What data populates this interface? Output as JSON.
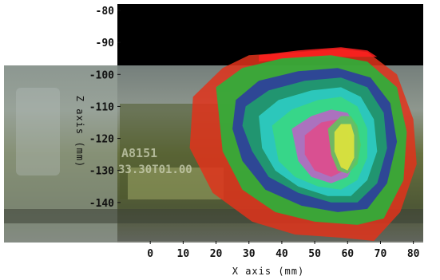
{
  "chart_data": {
    "type": "contour",
    "xlabel": "X axis (mm)",
    "ylabel": "Z axis (mm)",
    "xlim": [
      -10,
      83
    ],
    "ylim": [
      -152,
      -78
    ],
    "x_ticks": [
      0,
      10,
      20,
      30,
      40,
      50,
      60,
      70,
      80
    ],
    "y_ticks": [
      -80,
      -90,
      -100,
      -110,
      -120,
      -130,
      -140
    ],
    "grid": false,
    "background_photo_text": [
      "A8151",
      "33.30T01.00"
    ],
    "contours": [
      {
        "color": "#e0331b",
        "points": [
          [
            13,
            -107
          ],
          [
            22,
            -98
          ],
          [
            30,
            -94
          ],
          [
            45,
            -93
          ],
          [
            58,
            -92
          ],
          [
            66,
            -93
          ],
          [
            75,
            -100
          ],
          [
            80,
            -114
          ],
          [
            81,
            -128
          ],
          [
            76,
            -143
          ],
          [
            68,
            -152
          ],
          [
            58,
            -151
          ],
          [
            44,
            -150
          ],
          [
            31,
            -146
          ],
          [
            19,
            -137
          ],
          [
            12,
            -123
          ]
        ]
      },
      {
        "color": "#ff2020",
        "points": [
          [
            33,
            -94
          ],
          [
            45,
            -92.5
          ],
          [
            58,
            -91.5
          ],
          [
            66,
            -92.5
          ],
          [
            69,
            -94.5
          ],
          [
            58,
            -94.5
          ],
          [
            45,
            -95
          ],
          [
            33,
            -96
          ]
        ]
      },
      {
        "color": "#22b83c",
        "points": [
          [
            20,
            -104
          ],
          [
            28,
            -98
          ],
          [
            40,
            -95
          ],
          [
            55,
            -94
          ],
          [
            66,
            -96
          ],
          [
            75,
            -104
          ],
          [
            78,
            -118
          ],
          [
            77,
            -133
          ],
          [
            71,
            -145
          ],
          [
            63,
            -147
          ],
          [
            50,
            -146
          ],
          [
            38,
            -143
          ],
          [
            28,
            -136
          ],
          [
            22,
            -124
          ]
        ]
      },
      {
        "color": "#2b36a6",
        "points": [
          [
            26,
            -108
          ],
          [
            33,
            -102
          ],
          [
            45,
            -99
          ],
          [
            57,
            -98
          ],
          [
            67,
            -101
          ],
          [
            73,
            -109
          ],
          [
            75,
            -121
          ],
          [
            72,
            -134
          ],
          [
            66,
            -142
          ],
          [
            57,
            -143
          ],
          [
            46,
            -141
          ],
          [
            35,
            -136
          ],
          [
            28,
            -127
          ],
          [
            25,
            -117
          ]
        ]
      },
      {
        "color": "#1fa36a",
        "points": [
          [
            29,
            -110
          ],
          [
            36,
            -105
          ],
          [
            47,
            -102
          ],
          [
            58,
            -101
          ],
          [
            66,
            -104
          ],
          [
            71,
            -112
          ],
          [
            72,
            -123
          ],
          [
            69,
            -134
          ],
          [
            63,
            -140
          ],
          [
            55,
            -140
          ],
          [
            45,
            -137
          ],
          [
            36,
            -132
          ],
          [
            31,
            -124
          ],
          [
            28,
            -116
          ]
        ]
      },
      {
        "color": "#2ed0c8",
        "points": [
          [
            33,
            -113
          ],
          [
            39,
            -108
          ],
          [
            49,
            -105
          ],
          [
            58,
            -104
          ],
          [
            64,
            -107
          ],
          [
            68,
            -114
          ],
          [
            69,
            -124
          ],
          [
            66,
            -133
          ],
          [
            61,
            -138
          ],
          [
            54,
            -138
          ],
          [
            45,
            -135
          ],
          [
            38,
            -130
          ],
          [
            34,
            -123
          ]
        ]
      },
      {
        "color": "#3ad880",
        "points": [
          [
            37,
            -116
          ],
          [
            43,
            -111
          ],
          [
            51,
            -108
          ],
          [
            58,
            -107
          ],
          [
            63,
            -110
          ],
          [
            66,
            -117
          ],
          [
            66,
            -126
          ],
          [
            63,
            -133
          ],
          [
            58,
            -136
          ],
          [
            51,
            -135
          ],
          [
            44,
            -132
          ],
          [
            39,
            -127
          ]
        ]
      },
      {
        "color": "#c060c8",
        "points": [
          [
            43,
            -117
          ],
          [
            49,
            -113
          ],
          [
            55,
            -111
          ],
          [
            60,
            -112
          ],
          [
            63,
            -117
          ],
          [
            63,
            -126
          ],
          [
            60,
            -132
          ],
          [
            55,
            -134
          ],
          [
            49,
            -132
          ],
          [
            45,
            -127
          ]
        ]
      },
      {
        "color": "#e04a8a",
        "points": [
          [
            47,
            -119
          ],
          [
            52,
            -115
          ],
          [
            57,
            -114
          ],
          [
            60,
            -117
          ],
          [
            61,
            -124
          ],
          [
            59,
            -130
          ],
          [
            55,
            -132
          ],
          [
            50,
            -130
          ],
          [
            47,
            -125
          ]
        ]
      },
      {
        "color": "#5cc95a",
        "points": [
          [
            54,
            -117
          ],
          [
            58,
            -113
          ],
          [
            61,
            -113
          ],
          [
            63,
            -116
          ],
          [
            64,
            -122
          ],
          [
            63,
            -128
          ],
          [
            60,
            -131
          ],
          [
            57,
            -130
          ],
          [
            55,
            -125
          ]
        ]
      },
      {
        "color": "#e8e638",
        "points": [
          [
            56,
            -118
          ],
          [
            58,
            -115.5
          ],
          [
            61,
            -115.5
          ],
          [
            62,
            -119
          ],
          [
            62,
            -126
          ],
          [
            60,
            -130
          ],
          [
            58,
            -129
          ],
          [
            56,
            -124
          ]
        ]
      }
    ]
  }
}
